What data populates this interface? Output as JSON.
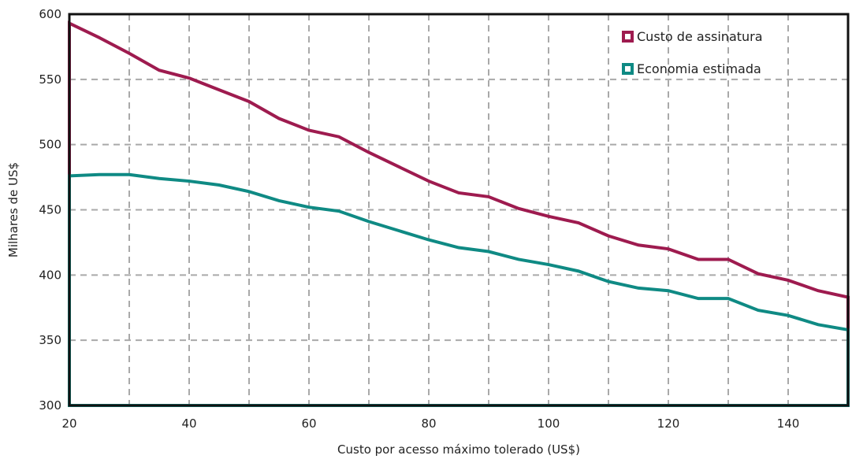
{
  "chart_data": {
    "type": "area",
    "xlabel": "Custo por acesso máximo tolerado (US$)",
    "ylabel": "Milhares de US$",
    "xlim": [
      20,
      150
    ],
    "ylim": [
      300,
      600
    ],
    "xticks": [
      20,
      40,
      60,
      80,
      100,
      120,
      140
    ],
    "yticks": [
      300,
      350,
      400,
      450,
      500,
      550,
      600
    ],
    "x_gridlines": [
      20,
      30,
      40,
      50,
      60,
      70,
      80,
      90,
      100,
      110,
      120,
      130,
      140,
      150
    ],
    "y_gridlines": [
      300,
      350,
      400,
      450,
      500,
      550,
      600
    ],
    "grid": true,
    "legend_position": "top-right",
    "x": [
      20,
      25,
      30,
      35,
      40,
      45,
      50,
      55,
      60,
      65,
      70,
      75,
      80,
      85,
      90,
      95,
      100,
      105,
      110,
      115,
      120,
      125,
      130,
      135,
      140,
      145,
      150
    ],
    "series": [
      {
        "name": "Custo de assinatura",
        "color": "#9e1b4f",
        "values": [
          593,
          582,
          570,
          557,
          551,
          542,
          533,
          520,
          511,
          506,
          494,
          483,
          472,
          463,
          460,
          451,
          445,
          440,
          430,
          423,
          420,
          412,
          412,
          401,
          396,
          388,
          383
        ]
      },
      {
        "name": "Economia estimada",
        "color": "#0f8a84",
        "values": [
          476,
          477,
          477,
          474,
          472,
          469,
          464,
          457,
          452,
          449,
          441,
          434,
          427,
          421,
          418,
          412,
          408,
          403,
          395,
          390,
          388,
          382,
          382,
          373,
          369,
          362,
          358
        ]
      }
    ]
  }
}
